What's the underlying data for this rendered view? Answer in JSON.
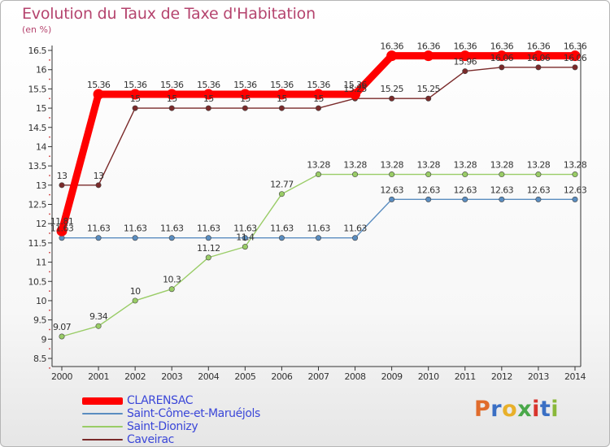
{
  "chart_data": {
    "type": "line",
    "title": "Evolution du Taux de Taxe d'Habitation",
    "unit_label": "(en %)",
    "xlabel": "",
    "ylabel": "",
    "ylim": [
      8.5,
      16.5
    ],
    "ytick_step": 0.5,
    "yticks": [
      "8.5",
      "9",
      "9.5",
      "10",
      "10.5",
      "11",
      "11.5",
      "12",
      "12.5",
      "13",
      "13.5",
      "14",
      "14.5",
      "15",
      "15.5",
      "16",
      "16.5"
    ],
    "grid": false,
    "categories": [
      "2000",
      "2001",
      "2002",
      "2003",
      "2004",
      "2005",
      "2006",
      "2007",
      "2008",
      "2009",
      "2010",
      "2011",
      "2012",
      "2013",
      "2014"
    ],
    "series": [
      {
        "name": "CLARENSAC",
        "color": "#ff0000",
        "values": [
          11.81,
          15.36,
          15.36,
          15.36,
          15.36,
          15.36,
          15.36,
          15.36,
          15.36,
          16.36,
          16.36,
          16.36,
          16.36,
          16.36,
          16.36
        ],
        "labels": [
          "11.81",
          "15.36",
          "15.36",
          "15.36",
          "15.36",
          "15.36",
          "15.36",
          "15.36",
          "15.36",
          "16.36",
          "16.36",
          "16.36",
          "16.36",
          "16.36",
          "16.36"
        ]
      },
      {
        "name": "Saint-Côme-et-Maruéjols",
        "color": "#5a8dc0",
        "values": [
          11.63,
          11.63,
          11.63,
          11.63,
          11.63,
          11.63,
          11.63,
          11.63,
          11.63,
          12.63,
          12.63,
          12.63,
          12.63,
          12.63,
          12.63
        ],
        "labels": [
          "11.63",
          "11.63",
          "11.63",
          "11.63",
          "11.63",
          "11.63",
          "11.63",
          "11.63",
          "11.63",
          "12.63",
          "12.63",
          "12.63",
          "12.63",
          "12.63",
          "12.63"
        ]
      },
      {
        "name": "Saint-Dionizy",
        "color": "#99cc66",
        "values": [
          9.07,
          9.34,
          10,
          10.3,
          11.12,
          11.4,
          12.77,
          13.28,
          13.28,
          13.28,
          13.28,
          13.28,
          13.28,
          13.28,
          13.28
        ],
        "labels": [
          "9.07",
          "9.34",
          "10",
          "10.3",
          "11.12",
          "11.4",
          "12.77",
          "13.28",
          "13.28",
          "13.28",
          "13.28",
          "13.28",
          "13.28",
          "13.28",
          "13.28"
        ]
      },
      {
        "name": "Caveirac",
        "color": "#7a2a2a",
        "values": [
          13,
          13,
          15,
          15,
          15,
          15,
          15,
          15,
          15.25,
          15.25,
          15.25,
          15.96,
          16.06,
          16.06,
          16.06
        ],
        "labels": [
          "13",
          "13",
          "15",
          "15",
          "15",
          "15",
          "15",
          "15",
          "15.25",
          "15.25",
          "15.25",
          "15.96",
          "16.06",
          "16.06",
          "16.06"
        ]
      }
    ],
    "legend": [
      "CLARENSAC",
      "Saint-Côme-et-Maruéjols",
      "Saint-Dionizy",
      "Caveirac"
    ],
    "legend_position": "bottom-left"
  },
  "brand": {
    "letters": [
      "P",
      "r",
      "o",
      "x",
      "i",
      "t",
      "i"
    ],
    "colors": [
      "#e06c2c",
      "#3a6fc4",
      "#e8b02a",
      "#4aa84a",
      "#d8342c",
      "#3a6fc4",
      "#8ab83a"
    ]
  }
}
